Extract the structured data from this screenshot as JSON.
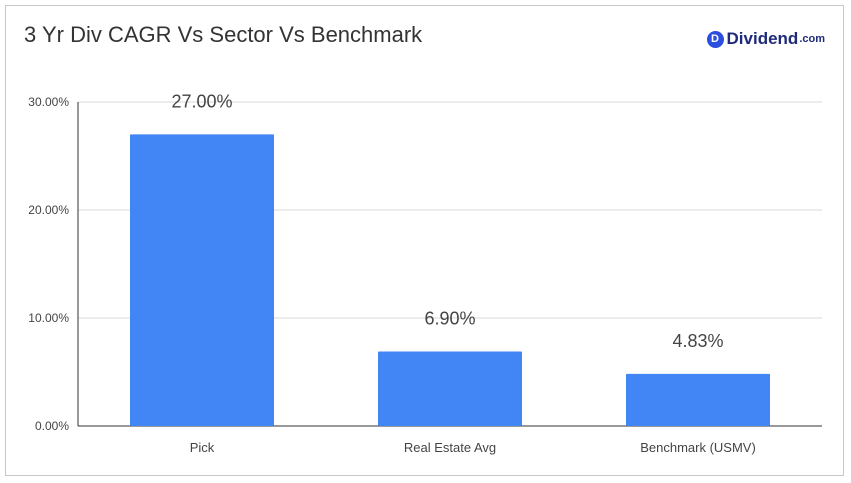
{
  "header": {
    "title": "3 Yr Div CAGR Vs Sector Vs Benchmark",
    "logo_badge": "D",
    "logo_word": "Dividend",
    "logo_tld": ".com"
  },
  "chart_data": {
    "type": "bar",
    "title": "3 Yr Div CAGR Vs Sector Vs Benchmark",
    "xlabel": "",
    "ylabel": "",
    "categories": [
      "Pick",
      "Real Estate Avg",
      "Benchmark (USMV)"
    ],
    "values": [
      27.0,
      6.9,
      4.83
    ],
    "data_labels": [
      "27.00%",
      "6.90%",
      "4.83%"
    ],
    "ylim": [
      0,
      30
    ],
    "yticks": [
      0,
      10,
      20,
      30
    ],
    "ytick_labels": [
      "0.00%",
      "10.00%",
      "20.00%",
      "30.00%"
    ],
    "grid": true,
    "legend": "none",
    "bar_color": "#4285f4",
    "grid_color": "#d9d9d9",
    "axis_color": "#333333"
  }
}
